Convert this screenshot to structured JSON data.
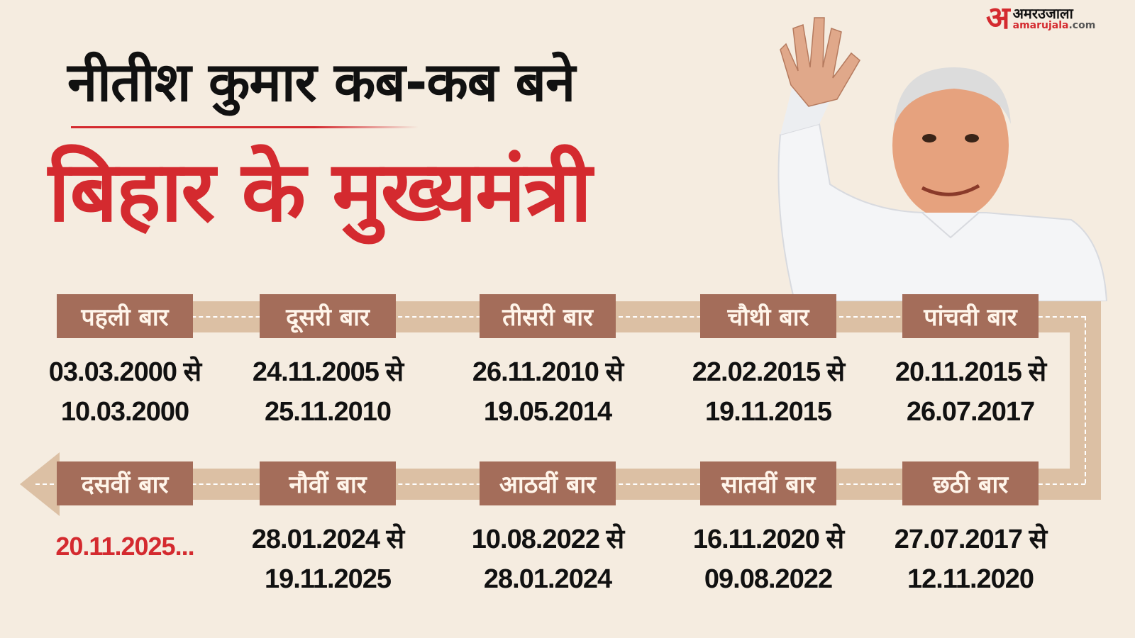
{
  "brand": {
    "logo_mark": "अ",
    "name_hi": "अमरउजाला",
    "name_en": "amarujala",
    "name_tld": ".com"
  },
  "title": {
    "line1": "नीतीश कुमार कब-कब बने",
    "line2": "बिहार के मुख्यमंत्री"
  },
  "colors": {
    "accent_red": "#d42a2f",
    "label_bg": "#a46d5a",
    "band": "#dcc0a4",
    "background": "#f5ece0"
  },
  "timeline": [
    {
      "label": "पहली बार",
      "from": "03.03.2000 से",
      "to": "10.03.2000"
    },
    {
      "label": "दूसरी बार",
      "from": "24.11.2005 से",
      "to": "25.11.2010"
    },
    {
      "label": "तीसरी बार",
      "from": "26.11.2010 से",
      "to": "19.05.2014"
    },
    {
      "label": "चौथी बार",
      "from": "22.02.2015 से",
      "to": "19.11.2015"
    },
    {
      "label": "पांचवी बार",
      "from": "20.11.2015 से",
      "to": "26.07.2017"
    },
    {
      "label": "छठी बार",
      "from": "27.07.2017 से",
      "to": "12.11.2020"
    },
    {
      "label": "सातवीं बार",
      "from": "16.11.2020 से",
      "to": "09.08.2022"
    },
    {
      "label": "आठवीं बार",
      "from": "10.08.2022 से",
      "to": "28.01.2024"
    },
    {
      "label": "नौवीं बार",
      "from": "28.01.2024 से",
      "to": "19.11.2025"
    },
    {
      "label": "दसवीं बार",
      "from": "20.11.2025...",
      "to": ""
    }
  ]
}
